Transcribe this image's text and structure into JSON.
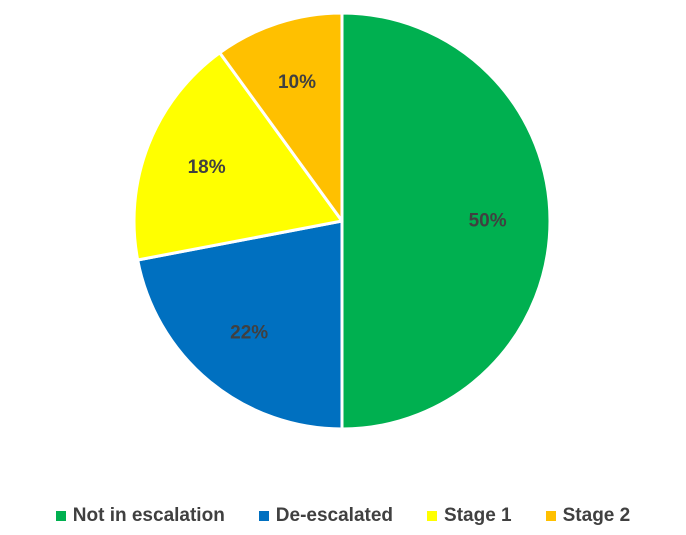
{
  "chart_data": {
    "type": "pie",
    "title": "",
    "categories": [
      "Not in escalation",
      "De-escalated",
      "Stage 1",
      "Stage 2"
    ],
    "values": [
      50,
      22,
      18,
      10
    ],
    "labels": [
      "50%",
      "22%",
      "18%",
      "10%"
    ],
    "colors": [
      "#00B050",
      "#0070C0",
      "#FFFF00",
      "#FFC000"
    ],
    "start_angle_deg": 0,
    "direction": "clockwise",
    "legend_position": "bottom",
    "data_label_color": "#404040",
    "slice_border_color": "#ffffff"
  }
}
